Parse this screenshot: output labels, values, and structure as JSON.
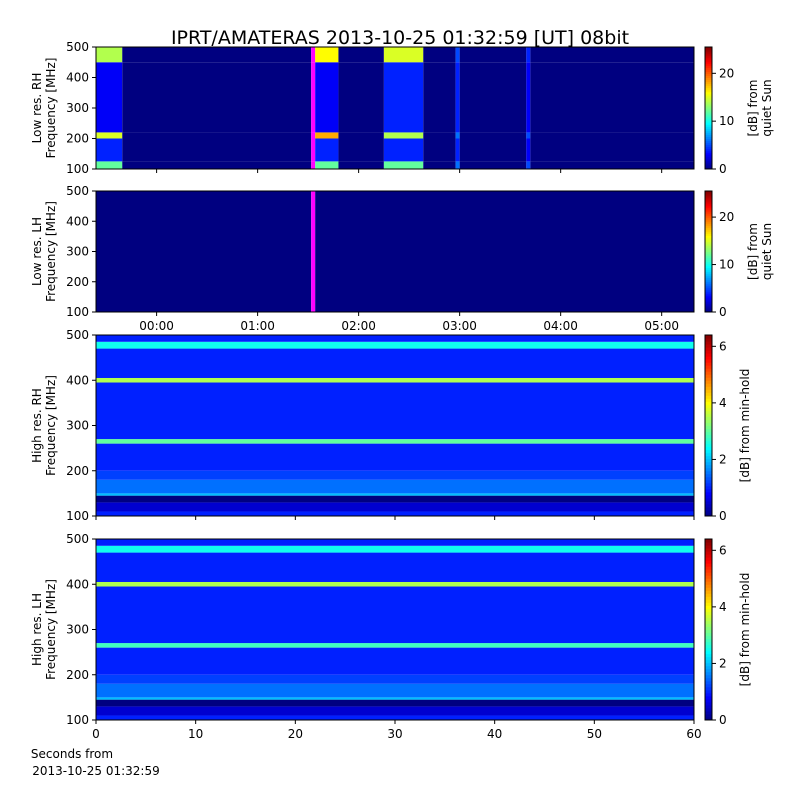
{
  "title": "IPRT/AMATERAS 2013-10-25 01:32:59 [UT]   08bit",
  "xlabel": [
    "Seconds from",
    "2013-10-25 01:32:59"
  ],
  "chart_data": [
    {
      "type": "heatmap",
      "ylabel": [
        "Low res. RH",
        "Frequency [MHz]"
      ],
      "x": [
        -0.6,
        -0.34,
        1.53,
        1.57,
        1.8,
        2.25,
        2.64,
        2.96,
        3.0,
        3.66,
        3.7,
        5.32
      ],
      "y": [
        100,
        125,
        200,
        220,
        450,
        500
      ],
      "z": [
        [
          12,
          0,
          30,
          12,
          0,
          12,
          0,
          6,
          0,
          5,
          0
        ],
        [
          4,
          0,
          30,
          4,
          0,
          4,
          0,
          4,
          0,
          3,
          0
        ],
        [
          15,
          0,
          30,
          18,
          0,
          14,
          0,
          6,
          0,
          5,
          0
        ],
        [
          3,
          0,
          30,
          3,
          0,
          4,
          0,
          4,
          0,
          3,
          0
        ],
        [
          14,
          0,
          30,
          16,
          0,
          15,
          0,
          5,
          0,
          4,
          0
        ]
      ],
      "xlim": [
        -0.6,
        5.32
      ],
      "ylim": [
        100,
        500
      ],
      "yticks": [
        100,
        200,
        300,
        400,
        500
      ],
      "zlim": [
        0,
        25.5
      ],
      "zticks": [
        0,
        10,
        20
      ],
      "over_color": "#ff00ff",
      "colorbar_label": [
        "[dB] from",
        "quiet Sun"
      ]
    },
    {
      "type": "heatmap",
      "ylabel": [
        "Low res. LH",
        "Frequency [MHz]"
      ],
      "x": [
        -0.6,
        1.53,
        1.57,
        5.32
      ],
      "y": [
        100,
        500
      ],
      "z": [
        [
          0,
          30,
          0
        ]
      ],
      "xlim": [
        -0.6,
        5.32
      ],
      "ylim": [
        100,
        500
      ],
      "yticks": [
        100,
        200,
        300,
        400,
        500
      ],
      "xticks": [
        {
          "value": 0,
          "label": "00:00"
        },
        {
          "value": 1,
          "label": "01:00"
        },
        {
          "value": 2,
          "label": "02:00"
        },
        {
          "value": 3,
          "label": "03:00"
        },
        {
          "value": 4,
          "label": "04:00"
        },
        {
          "value": 5,
          "label": "05:00"
        }
      ],
      "zlim": [
        0,
        25.5
      ],
      "zticks": [
        0,
        10,
        20
      ],
      "over_color": "#ff00ff",
      "colorbar_label": [
        "[dB] from",
        "quiet Sun"
      ]
    },
    {
      "type": "heatmap",
      "ylabel": [
        "High res. RH",
        "Frequency [MHz]"
      ],
      "x": [
        0,
        60
      ],
      "y": [
        100,
        110,
        130,
        145,
        150,
        180,
        200,
        260,
        270,
        395,
        405,
        470,
        485,
        500
      ],
      "z": [
        [
          1
        ],
        [
          0.5
        ],
        [
          0
        ],
        [
          2
        ],
        [
          1.5
        ],
        [
          1.2
        ],
        [
          1
        ],
        [
          3
        ],
        [
          1
        ],
        [
          3.5
        ],
        [
          1
        ],
        [
          2.5
        ],
        [
          1
        ]
      ],
      "xlim": [
        0,
        60
      ],
      "ylim": [
        100,
        500
      ],
      "yticks": [
        100,
        200,
        300,
        400,
        500
      ],
      "zlim": [
        0,
        6.4
      ],
      "zticks": [
        0,
        2,
        4,
        6
      ],
      "colorbar_label": [
        "[dB] from min-hold"
      ]
    },
    {
      "type": "heatmap",
      "ylabel": [
        "High res. LH",
        "Frequency [MHz]"
      ],
      "x": [
        0,
        60
      ],
      "y": [
        100,
        110,
        130,
        145,
        150,
        180,
        200,
        260,
        270,
        395,
        405,
        470,
        485,
        500
      ],
      "z": [
        [
          1
        ],
        [
          0.5
        ],
        [
          0
        ],
        [
          2
        ],
        [
          1.5
        ],
        [
          1.2
        ],
        [
          1
        ],
        [
          2.8
        ],
        [
          1
        ],
        [
          3.5
        ],
        [
          1
        ],
        [
          2.5
        ],
        [
          1
        ]
      ],
      "xlim": [
        0,
        60
      ],
      "ylim": [
        100,
        500
      ],
      "yticks": [
        100,
        200,
        300,
        400,
        500
      ],
      "xticks": [
        0,
        10,
        20,
        30,
        40,
        50,
        60
      ],
      "zlim": [
        0,
        6.4
      ],
      "zticks": [
        0,
        2,
        4,
        6
      ],
      "colorbar_label": [
        "[dB] from min-hold"
      ]
    }
  ]
}
